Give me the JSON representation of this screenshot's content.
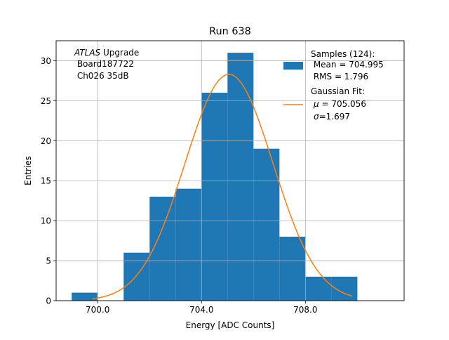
{
  "chart_data": {
    "type": "bar",
    "title": "Run 638",
    "xlabel": "Energy [ADC Counts]",
    "ylabel": "Entries",
    "xlim": [
      698.4,
      711.8
    ],
    "ylim": [
      0,
      32.5
    ],
    "grid": true,
    "x_ticks": [
      700.0,
      704.0,
      708.0
    ],
    "x_tick_labels": [
      "700.0",
      "704.0",
      "708.0"
    ],
    "y_ticks": [
      0,
      5,
      10,
      15,
      20,
      25,
      30
    ],
    "y_tick_labels": [
      "0",
      "5",
      "10",
      "15",
      "20",
      "25",
      "30"
    ],
    "bins": [
      {
        "x0": 699.0,
        "x1": 700.0,
        "count": 1
      },
      {
        "x0": 700.0,
        "x1": 701.0,
        "count": 0
      },
      {
        "x0": 701.0,
        "x1": 702.0,
        "count": 6
      },
      {
        "x0": 702.0,
        "x1": 703.0,
        "count": 13
      },
      {
        "x0": 703.0,
        "x1": 704.0,
        "count": 14
      },
      {
        "x0": 704.0,
        "x1": 705.0,
        "count": 26
      },
      {
        "x0": 705.0,
        "x1": 706.0,
        "count": 31
      },
      {
        "x0": 706.0,
        "x1": 707.0,
        "count": 19
      },
      {
        "x0": 707.0,
        "x1": 708.0,
        "count": 8
      },
      {
        "x0": 708.0,
        "x1": 709.0,
        "count": 3
      },
      {
        "x0": 709.0,
        "x1": 710.0,
        "count": 3
      }
    ],
    "histogram_color": "#1f77b4",
    "fit": {
      "type": "gaussian",
      "mu": 705.056,
      "sigma": 1.697,
      "amplitude": 28.3,
      "x_range": [
        699.8,
        709.8
      ],
      "color": "#ff7f0e"
    },
    "annotation": {
      "line1_italic": "ATLAS",
      "line1_rest": " Upgrade",
      "line2": " Board187722",
      "line3": " Ch026 35dB"
    },
    "legend": {
      "placement": "top-right",
      "samples_line1": "Samples (124):",
      "samples_line2": " Mean = 704.995",
      "samples_line3": " RMS = 1.796",
      "fit_line1": "Gaussian Fit:",
      "fit_mu_symbol": "μ",
      "fit_mu_rest": " = 705.056",
      "fit_sigma_symbol": "σ",
      "fit_sigma_rest": "=1.697"
    }
  }
}
